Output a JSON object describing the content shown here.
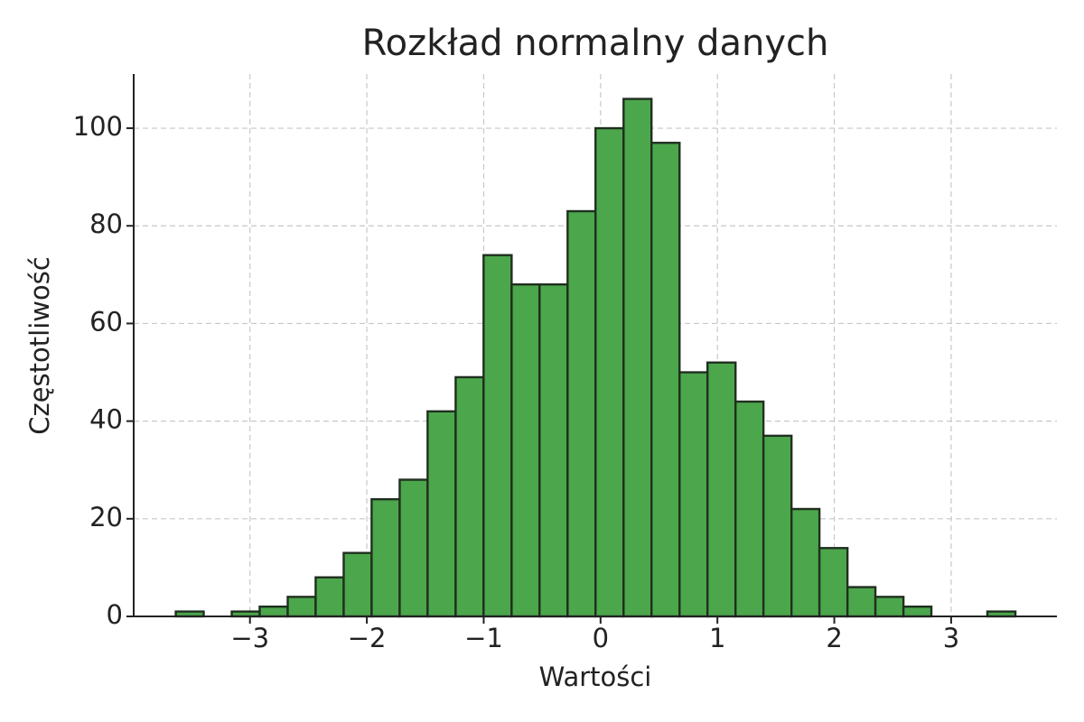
{
  "chart_data": {
    "type": "histogram",
    "title": "Rozkład normalny danych",
    "x_label": "Wartości",
    "y_label": "Częstotliwość",
    "bins": [
      -3.635,
      -3.396,
      -3.156,
      -2.917,
      -2.677,
      -2.438,
      -2.198,
      -1.959,
      -1.719,
      -1.48,
      -1.24,
      -1.001,
      -0.761,
      -0.522,
      -0.282,
      -0.043,
      0.197,
      0.436,
      0.676,
      0.915,
      1.155,
      1.394,
      1.634,
      1.873,
      2.113,
      2.352,
      2.592,
      2.831,
      3.071,
      3.31,
      3.55
    ],
    "values": [
      1,
      0,
      1,
      2,
      4,
      8,
      13,
      24,
      28,
      42,
      49,
      74,
      68,
      68,
      83,
      100,
      106,
      97,
      50,
      52,
      44,
      37,
      22,
      14,
      6,
      4,
      2,
      0,
      0,
      1
    ],
    "color": "#4ca64c",
    "edgecolor": "#1f2f1f",
    "xlim": [
      -3.995,
      3.905
    ],
    "ylim": [
      0,
      111.1
    ],
    "xticks": [
      {
        "value": -3,
        "label": "−3"
      },
      {
        "value": -2,
        "label": "−2"
      },
      {
        "value": -1,
        "label": "−1"
      },
      0,
      1,
      2,
      3
    ],
    "yticks": [
      0,
      20,
      40,
      60,
      80,
      100
    ],
    "grid": true
  }
}
